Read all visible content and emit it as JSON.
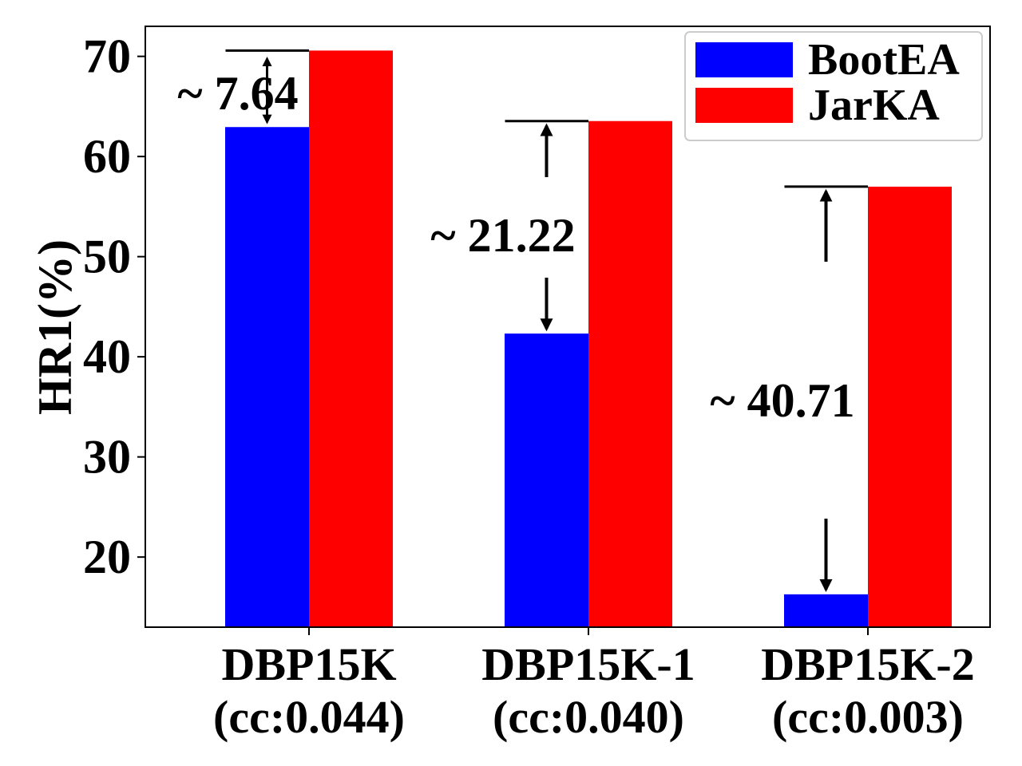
{
  "chart_data": {
    "type": "bar",
    "categories": [
      [
        "DBP15K",
        "(cc:0.044)"
      ],
      [
        "DBP15K-1",
        "(cc:0.040)"
      ],
      [
        "DBP15K-2",
        "(cc:0.003)"
      ]
    ],
    "series": [
      {
        "name": "BootEA",
        "color": "#0000ff",
        "values": [
          62.94,
          42.32,
          16.28
        ]
      },
      {
        "name": "JarKA",
        "color": "#ff0000",
        "values": [
          70.58,
          63.54,
          56.99
        ]
      }
    ],
    "ylabel": "HR1(%)",
    "xlabel": "",
    "ylim": [
      13,
      73
    ],
    "yticks": [
      20,
      30,
      40,
      50,
      60,
      70
    ],
    "legend_position": "top-right",
    "annotations": [
      "~ 7.64",
      "~ 21.22",
      "~ 40.71"
    ],
    "grid": false
  }
}
